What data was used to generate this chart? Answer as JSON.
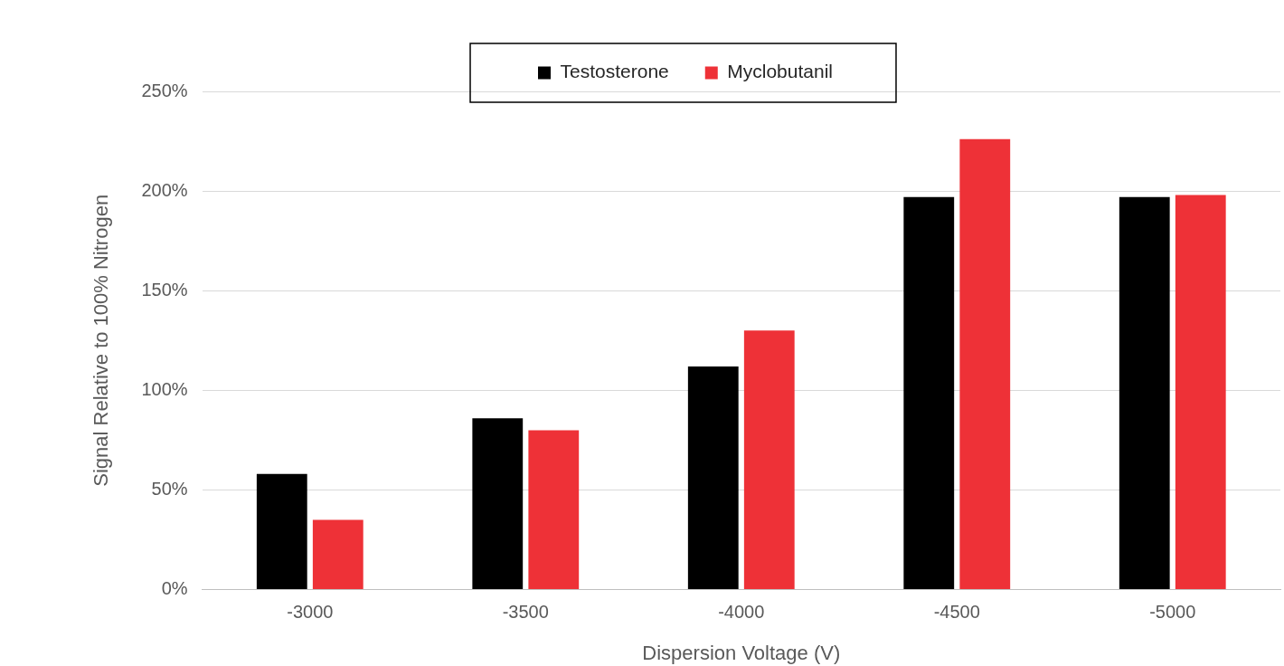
{
  "chart_data": {
    "type": "bar",
    "xlabel": "Dispersion Voltage (V)",
    "ylabel": "Signal Relative to 100% Nitrogen",
    "categories": [
      "-3000",
      "-3500",
      "-4000",
      "-4500",
      "-5000"
    ],
    "series": [
      {
        "name": "Testosterone",
        "color": "#000000",
        "values": [
          58,
          86,
          112,
          197,
          197
        ]
      },
      {
        "name": "Myclobutanil",
        "color": "#ee3137",
        "values": [
          35,
          80,
          130,
          226,
          198
        ]
      }
    ],
    "ylim": [
      0,
      250
    ],
    "yticks": [
      {
        "value": 0,
        "label": "0%"
      },
      {
        "value": 50,
        "label": "50%"
      },
      {
        "value": 100,
        "label": "100%"
      },
      {
        "value": 150,
        "label": "150%"
      },
      {
        "value": 200,
        "label": "200%"
      },
      {
        "value": 250,
        "label": "250%"
      }
    ],
    "grid": "y",
    "legend": "top"
  }
}
